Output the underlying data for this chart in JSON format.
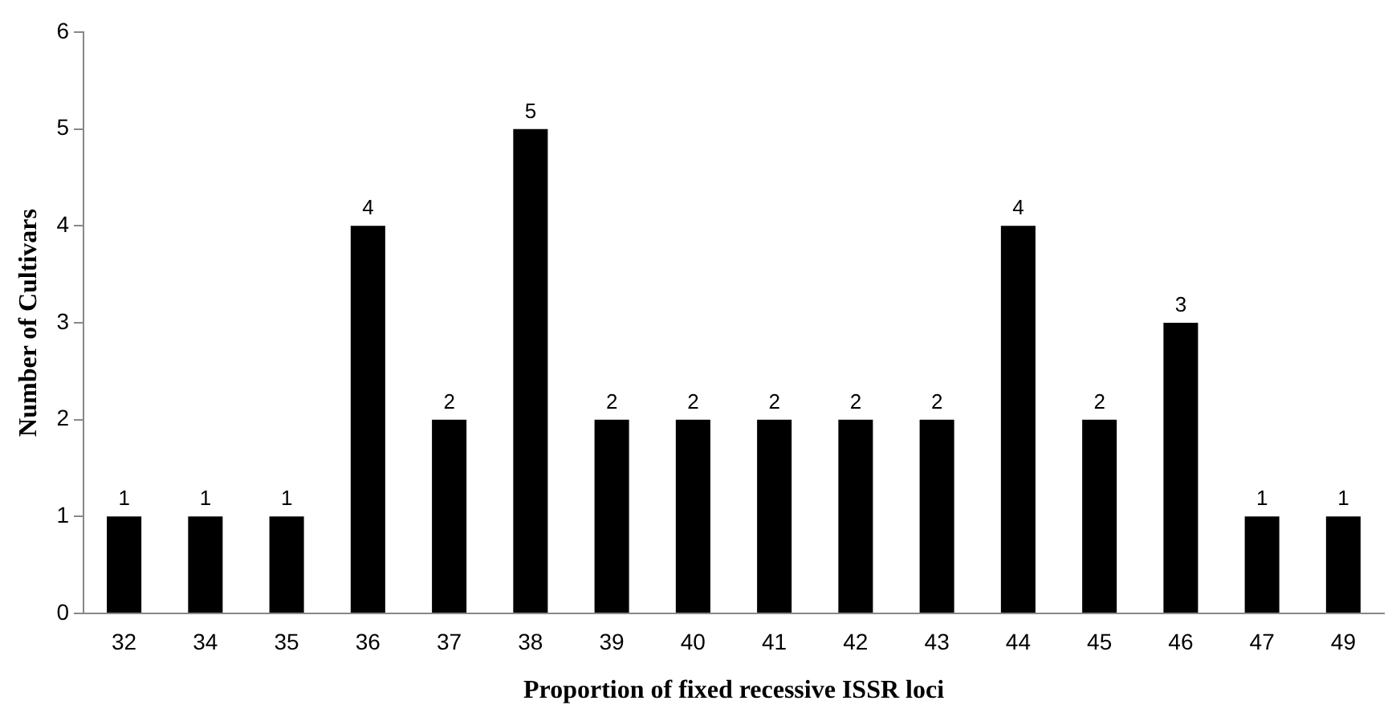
{
  "chart_data": {
    "type": "bar",
    "xlabel": "Proportion of fixed recessive ISSR loci",
    "ylabel": "Number of Cultivars",
    "categories": [
      "32",
      "34",
      "35",
      "36",
      "37",
      "38",
      "39",
      "40",
      "41",
      "42",
      "43",
      "44",
      "45",
      "46",
      "47",
      "49"
    ],
    "values": [
      1,
      1,
      1,
      4,
      2,
      5,
      2,
      2,
      2,
      2,
      2,
      4,
      2,
      3,
      1,
      1
    ],
    "color": "#000000",
    "ylim": [
      0,
      6
    ],
    "yticks": [
      0,
      1,
      2,
      3,
      4,
      5,
      6
    ],
    "grid": false,
    "legend": false,
    "data_labels": true
  }
}
